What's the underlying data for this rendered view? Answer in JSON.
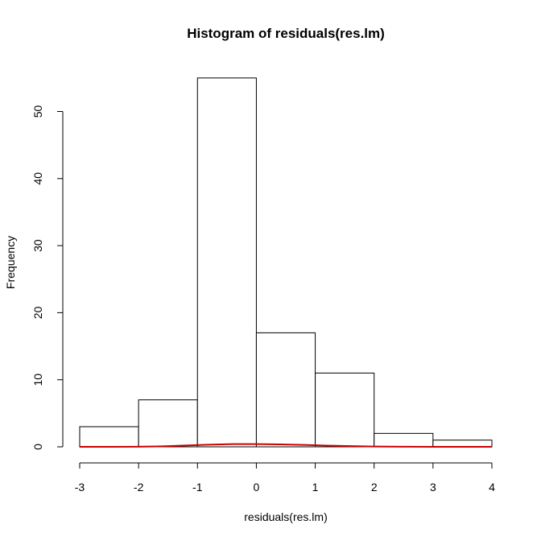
{
  "chart_data": {
    "type": "bar",
    "title": "Histogram of residuals(res.lm)",
    "xlabel": "residuals(res.lm)",
    "ylabel": "Frequency",
    "bins": [
      {
        "from": -3,
        "to": -2,
        "count": 3
      },
      {
        "from": -2,
        "to": -1,
        "count": 7
      },
      {
        "from": -1,
        "to": 0,
        "count": 55
      },
      {
        "from": 0,
        "to": 1,
        "count": 17
      },
      {
        "from": 1,
        "to": 2,
        "count": 11
      },
      {
        "from": 2,
        "to": 3,
        "count": 2
      },
      {
        "from": 3,
        "to": 4,
        "count": 1
      }
    ],
    "xlim": [
      -3,
      4
    ],
    "ylim": [
      0,
      55
    ],
    "xticks": [
      -3,
      -2,
      -1,
      0,
      1,
      2,
      3,
      4
    ],
    "xtick_labels": [
      "-3",
      "-2",
      "-1",
      "0",
      "1",
      "2",
      "3",
      "4"
    ],
    "yticks": [
      0,
      10,
      20,
      30,
      40,
      50
    ],
    "ytick_labels": [
      "0",
      "10",
      "20",
      "30",
      "40",
      "50"
    ],
    "density_curve": {
      "color": "#cc0000",
      "x": [
        -3.0,
        -2.5,
        -2.0,
        -1.6,
        -1.2,
        -0.8,
        -0.4,
        0.0,
        0.4,
        0.8,
        1.2,
        1.6,
        2.0,
        2.5,
        3.0,
        3.5,
        4.0
      ],
      "y": [
        0.0,
        0.0,
        0.02,
        0.08,
        0.2,
        0.32,
        0.4,
        0.4,
        0.36,
        0.28,
        0.18,
        0.1,
        0.04,
        0.01,
        0.0,
        0.0,
        0.0
      ]
    },
    "bar_fill": "#ffffff",
    "bar_stroke": "#000000",
    "grid": false,
    "legend": "none"
  }
}
